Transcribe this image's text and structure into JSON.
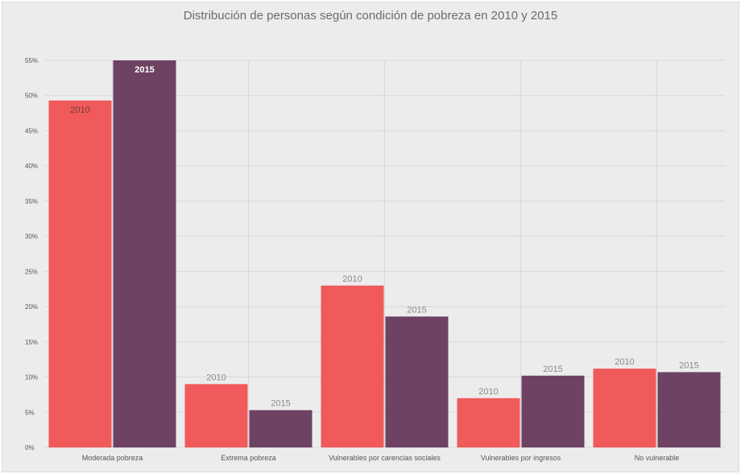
{
  "chart_data": {
    "type": "bar",
    "title": "Distribución de personas según condición de pobreza en 2010 y 2015",
    "xlabel": "",
    "ylabel": "",
    "ylim": [
      0,
      55
    ],
    "yticks": [
      0,
      5,
      10,
      15,
      20,
      25,
      30,
      35,
      40,
      45,
      50,
      55
    ],
    "ytick_labels": [
      "0%",
      "5%",
      "10%",
      "15%",
      "20%",
      "25%",
      "30%",
      "35%",
      "40%",
      "45%",
      "50%",
      "55%"
    ],
    "grid": true,
    "legend": "none",
    "categories": [
      "Moderada pobreza",
      "Extrema pobreza",
      "Vulnerables por carencias sociales",
      "Vulnerables por ingresos",
      "No vulnerable"
    ],
    "series": [
      {
        "name": "2010",
        "color": "#f05a5b",
        "values": [
          49.3,
          9.0,
          23.0,
          7.0,
          11.2
        ],
        "label_position": [
          "inside",
          "above",
          "above",
          "above",
          "above"
        ]
      },
      {
        "name": "2015",
        "color": "#6d4262",
        "values": [
          55.0,
          5.3,
          18.6,
          10.2,
          10.7
        ],
        "label_position": [
          "inside",
          "above",
          "above",
          "above",
          "above"
        ]
      }
    ]
  }
}
